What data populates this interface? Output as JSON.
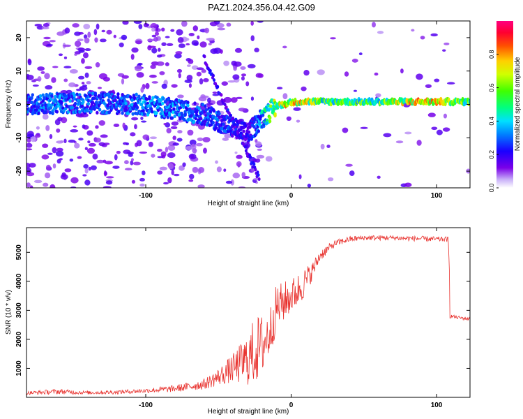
{
  "title": "PAZ1.2024.356.04.42.G09",
  "colors": {
    "snr_line": "#e8302c",
    "ridge_low": "#5a00e8",
    "ridge_mid": "#00d8ff",
    "ridge_high": "#ff2020",
    "axis": "#000000"
  },
  "chart_data": [
    {
      "type": "heatmap",
      "title": "",
      "xlabel": "Height of straight line (km)",
      "ylabel": "Frequency (Hz)",
      "xlim": [
        -182,
        123
      ],
      "ylim": [
        -25,
        25
      ],
      "xticks": [
        -100,
        0,
        100
      ],
      "xtick_labels": [
        "-100",
        "0",
        "100"
      ],
      "yticks": [
        -20,
        -10,
        0,
        10,
        20
      ],
      "ytick_labels": [
        "-20",
        "-10",
        "0",
        "10",
        "20"
      ],
      "colorbar": {
        "label": "Normalized spectral amplitude",
        "range": [
          0,
          1
        ],
        "ticks": [
          0.0,
          0.2,
          0.4,
          0.6,
          0.8
        ],
        "tick_labels": [
          "0.0",
          "0.2",
          "0.4",
          "0.6",
          "0.8"
        ],
        "colormap": "rainbow (purple to magenta)"
      },
      "ridge": {
        "x": [
          -180,
          -160,
          -140,
          -120,
          -100,
          -80,
          -60,
          -50,
          -40,
          -30,
          -20,
          -10,
          0,
          10,
          20,
          40,
          60,
          80,
          100,
          120
        ],
        "freq": [
          0,
          0.3,
          0.5,
          0.2,
          0,
          -1.5,
          -3,
          -5,
          -7,
          -9,
          -4,
          -0.5,
          0.6,
          0.9,
          0.8,
          0.8,
          0.8,
          0.8,
          0.8,
          0.8
        ],
        "amplitude": [
          0.3,
          0.35,
          0.3,
          0.3,
          0.35,
          0.35,
          0.3,
          0.3,
          0.25,
          0.2,
          0.4,
          0.7,
          0.8,
          0.7,
          0.6,
          0.55,
          0.6,
          0.75,
          0.8,
          0.6
        ]
      },
      "grid": false
    },
    {
      "type": "line",
      "title": "",
      "xlabel": "Height of straight line (km)",
      "ylabel": "SNR (10 * v/v)",
      "xlim": [
        -182,
        123
      ],
      "ylim": [
        0,
        5850
      ],
      "xticks": [
        -100,
        0,
        100
      ],
      "xtick_labels": [
        "-100",
        "0",
        "100"
      ],
      "yticks": [
        1000,
        2000,
        3000,
        4000,
        5000
      ],
      "ytick_labels": [
        "1000",
        "2000",
        "3000",
        "4000",
        "5000"
      ],
      "series": [
        {
          "x": [
            -182,
            -160,
            -140,
            -120,
            -100,
            -80,
            -60,
            -50,
            -40,
            -30,
            -25,
            -20,
            -15,
            -10,
            -5,
            0,
            5,
            10,
            15,
            20,
            30,
            40,
            50,
            60,
            70,
            80,
            90,
            100,
            108,
            110,
            115,
            123
          ],
          "values": [
            150,
            200,
            160,
            180,
            230,
            300,
            450,
            700,
            1000,
            1300,
            1600,
            1800,
            2200,
            3100,
            3300,
            3500,
            3700,
            4000,
            4400,
            4900,
            5300,
            5450,
            5500,
            5500,
            5500,
            5480,
            5470,
            5450,
            5450,
            2800,
            2750,
            2700
          ],
          "noise_amplitude": [
            60,
            90,
            60,
            70,
            80,
            120,
            180,
            300,
            500,
            900,
            1200,
            1100,
            900,
            800,
            700,
            600,
            600,
            500,
            300,
            200,
            120,
            100,
            90,
            90,
            90,
            90,
            90,
            90,
            90,
            60,
            60,
            60
          ]
        }
      ],
      "grid": false
    }
  ]
}
